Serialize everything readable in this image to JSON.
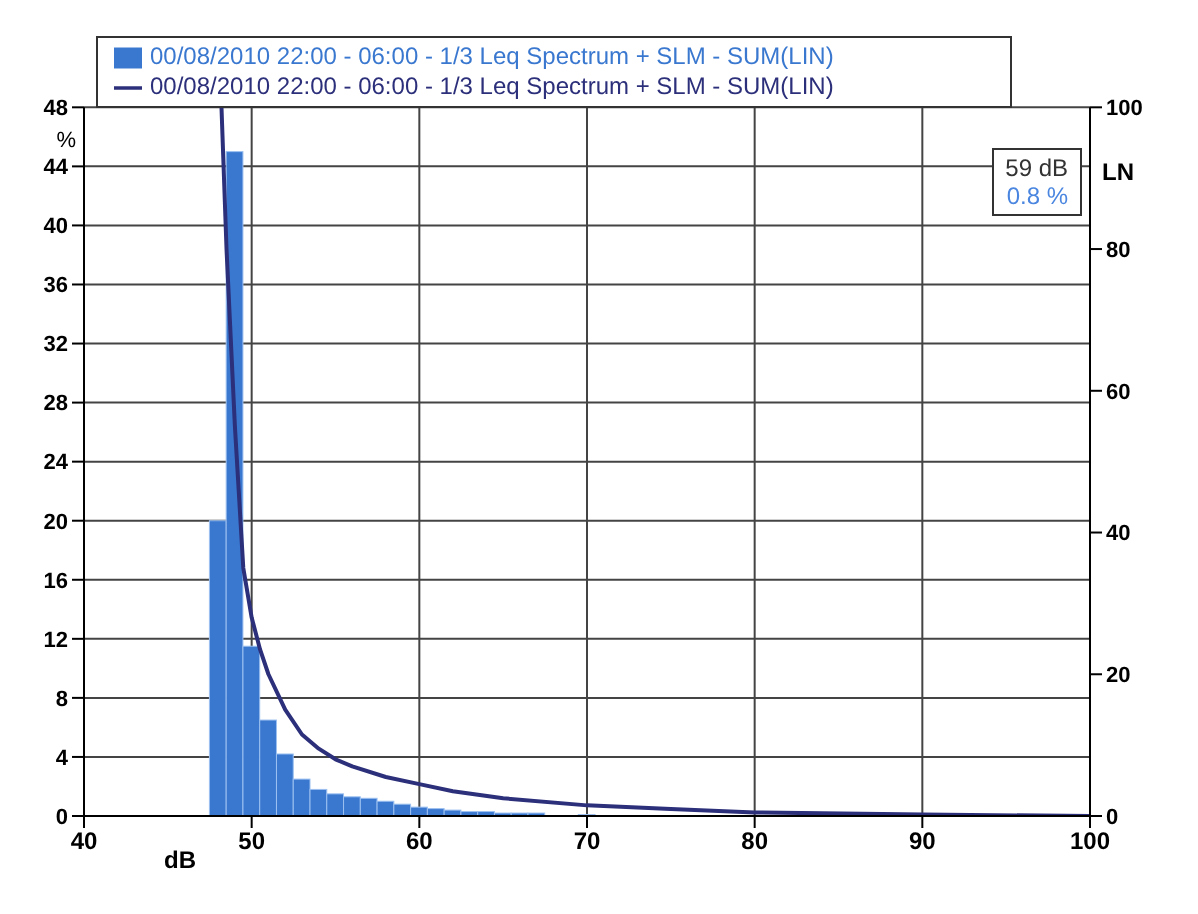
{
  "chart_data": {
    "type": "histogram",
    "xlabel": "dB",
    "ylabel": "%",
    "y2label": "LN",
    "bins": [
      47.5,
      48.5,
      49.5,
      50.5,
      51.5,
      52.5,
      53.5,
      54.5,
      55.5,
      56.5,
      57.5,
      58.5,
      59.5,
      60.5,
      61.5,
      62.5,
      63.5,
      64.5,
      65.5,
      66.5,
      67.5,
      68.5,
      69.5,
      70.5
    ],
    "series": [
      {
        "name": "00/08/2010 22:00 - 06:00 - 1/3 Leq Spectrum + SLM - SUM(LIN)",
        "color": "#3a78d0",
        "values": [
          20,
          45,
          11.5,
          6.5,
          4.2,
          2.5,
          1.8,
          1.5,
          1.3,
          1.2,
          1,
          0.8,
          0.6,
          0.5,
          0.4,
          0.3,
          0.3,
          0.2,
          0.2,
          0.2,
          null,
          null,
          0.1
        ]
      },
      {
        "type": "line",
        "axis": "y2",
        "name": "00/08/2010 22:00 - 06:00 - 1/3 Leq Spectrum + SLM - SUM(LIN)",
        "color": "#2c2f7a",
        "x": [
          48.2,
          48.5,
          49,
          49.5,
          50,
          50.5,
          51,
          52,
          53,
          54,
          55,
          56,
          58,
          60,
          62,
          65,
          70,
          75,
          80,
          90,
          100
        ],
        "values": [
          100,
          80,
          55,
          35,
          28,
          23.5,
          20,
          15,
          11.5,
          9.5,
          8,
          7,
          5.5,
          4.5,
          3.5,
          2.5,
          1.5,
          1,
          0.5,
          0.2,
          0
        ]
      }
    ],
    "annotations": [
      "59 dB",
      "0.8 %"
    ],
    "xlim": [
      40,
      100
    ],
    "xticks": [
      40,
      50,
      60,
      70,
      80,
      90,
      100
    ],
    "ylim": [
      0,
      48
    ],
    "yticks": [
      0,
      4,
      8,
      12,
      16,
      20,
      24,
      28,
      32,
      36,
      40,
      44,
      48
    ],
    "y2lim": [
      0,
      100
    ],
    "y2ticks": [
      0,
      20,
      40,
      60,
      80,
      100
    ],
    "grid": true,
    "legend": "top",
    "marker": "none",
    "line_style": "solid"
  }
}
